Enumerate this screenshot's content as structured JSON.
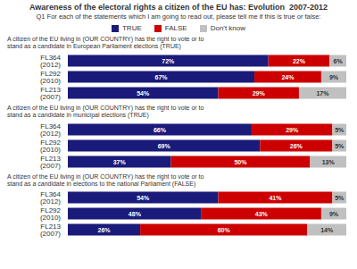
{
  "chart_data": {
    "type": "bar",
    "orientation": "horizontal",
    "stacked": true,
    "data_labels": true,
    "tick_labels": "y",
    "legend": "top",
    "title": "Awareness of the electoral rights a citizen of the EU has: Evolution  2007-2012",
    "subtitle": "Q1 For each of the statements which I am going to read out, please tell me if this is true or false:",
    "annotations": [
      "A citizen of the EU living in (OUR COUNTRY) has the right to vote or to\nstand as a candidate in European Parliament elections (TRUE)",
      "A citizen of the EU living in (OUR COUNTRY) has the right to vote or to\nstand as a candidate in municipal elections (TRUE)",
      "A citizen of the EU living in (OUR COUNTRY) has the right to vote or to\nstand as a candidate in elections to the national Parliament (FALSE)"
    ],
    "categories": [
      "FL364 (2012)",
      "FL292 (2010)",
      "FL213 (2007)",
      "FL364 (2012)",
      "FL292 (2010)",
      "FL213 (2007)",
      "FL364 (2012)",
      "FL292 (2010)",
      "FL213 (2007)"
    ],
    "xlim": [
      0,
      100
    ],
    "series": [
      {
        "name": "TRUE",
        "color": "#1a1a7a",
        "values": [
          72,
          67,
          54,
          66,
          69,
          37,
          54,
          48,
          26
        ],
        "value_labels": [
          "72%",
          "67%",
          "54%",
          "66%",
          "69%",
          "37%",
          "54%",
          "48%",
          "26%"
        ]
      },
      {
        "name": "FALSE",
        "color": "#cc0000",
        "values": [
          22,
          24,
          29,
          29,
          26,
          50,
          41,
          43,
          60
        ],
        "value_labels": [
          "22%",
          "24%",
          "29%",
          "29%",
          "26%",
          "50%",
          "41%",
          "43%",
          "60%"
        ]
      },
      {
        "name": "Don't know",
        "color": "#c0c0c0",
        "values": [
          6,
          9,
          17,
          5,
          5,
          13,
          5,
          9,
          14
        ],
        "value_labels": [
          "6%",
          "9%",
          "17%",
          "5%",
          "5%",
          "13%",
          "5%",
          "9%",
          "14%"
        ]
      }
    ]
  }
}
